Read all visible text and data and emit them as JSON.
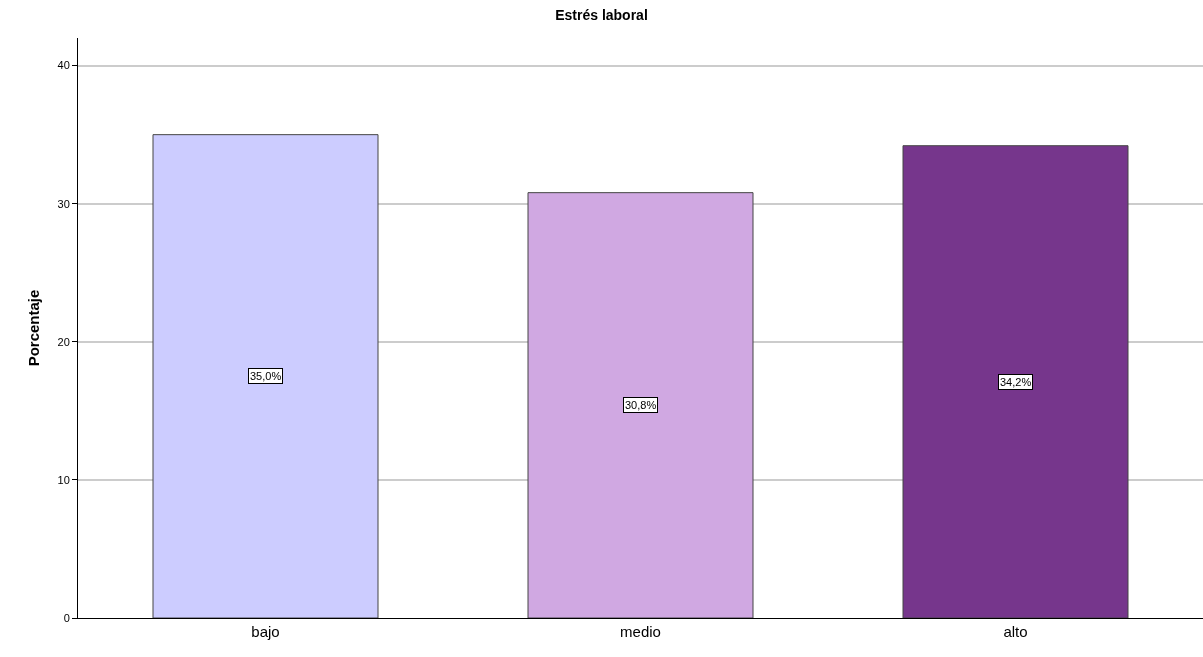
{
  "chart_data": {
    "type": "bar",
    "title": "Estrés laboral",
    "ylabel": "Porcentaje",
    "categories": [
      "bajo",
      "medio",
      "alto"
    ],
    "values": [
      35.0,
      30.8,
      34.2
    ],
    "colors": [
      "#ccccff",
      "#d0a8e2",
      "#76368c"
    ],
    "value_labels": [
      "35,0%",
      "30,8%",
      "34,2%"
    ],
    "ylim": [
      0,
      42
    ],
    "yticks": [
      0,
      10,
      20,
      30,
      40
    ],
    "grid": "y",
    "legend": false
  }
}
